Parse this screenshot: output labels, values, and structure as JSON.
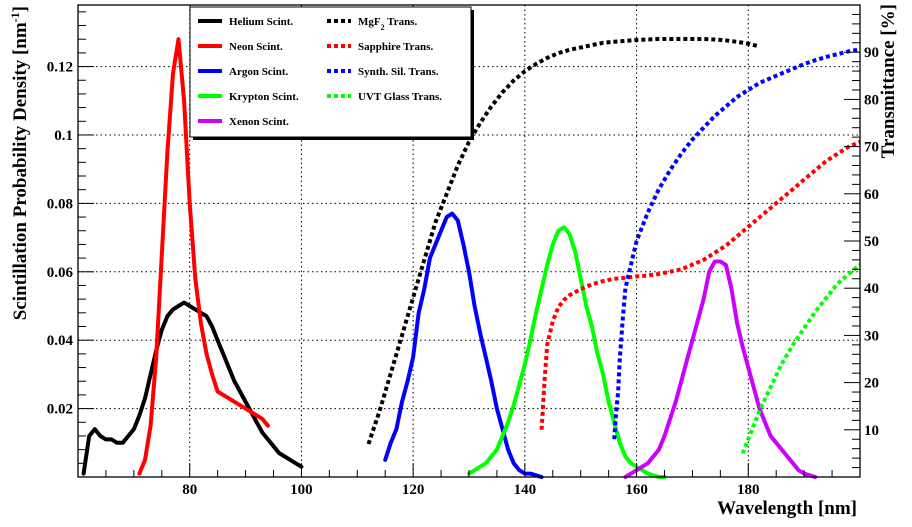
{
  "chart_data": {
    "type": "line",
    "xlabel": "Wavelength [nm]",
    "ylabel": "Scintillation Probability Density [nm",
    "ylabel_sup": "-1",
    "ylabel_end": "]",
    "y2label": "Transmittance [%]",
    "xlim": [
      60,
      200
    ],
    "ylim": [
      0,
      0.138
    ],
    "y2lim": [
      0,
      100
    ],
    "grid": true,
    "legend_placement": "top-left",
    "x_ticks": [
      80,
      100,
      120,
      140,
      160,
      180
    ],
    "y_ticks": [
      0.02,
      0.04,
      0.06,
      0.08,
      0.1,
      0.12
    ],
    "y_tick_labels": [
      "0.02",
      "0.04",
      "0.06",
      "0.08",
      "0.1",
      "0.12"
    ],
    "y2_ticks": [
      10,
      20,
      30,
      40,
      50,
      60,
      70,
      80,
      90
    ],
    "series": [
      {
        "name": "Helium Scint.",
        "axis": "left",
        "color": "#000000",
        "style": "solid",
        "x": [
          61,
          62,
          63,
          64,
          65,
          66,
          67,
          68,
          69,
          70,
          71,
          72,
          73,
          74,
          75,
          76,
          77,
          78,
          79,
          80,
          81,
          82,
          83,
          84,
          85,
          86,
          87,
          88,
          89,
          90,
          91,
          92,
          93,
          94,
          95,
          96,
          97,
          98,
          99,
          100
        ],
        "y": [
          0.001,
          0.012,
          0.014,
          0.012,
          0.011,
          0.011,
          0.01,
          0.01,
          0.012,
          0.014,
          0.018,
          0.023,
          0.03,
          0.037,
          0.043,
          0.047,
          0.049,
          0.05,
          0.051,
          0.05,
          0.049,
          0.048,
          0.047,
          0.044,
          0.04,
          0.036,
          0.032,
          0.028,
          0.025,
          0.022,
          0.019,
          0.016,
          0.013,
          0.011,
          0.009,
          0.007,
          0.006,
          0.005,
          0.004,
          0.003
        ]
      },
      {
        "name": "Neon Scint.",
        "axis": "left",
        "color": "#ff0000",
        "style": "solid",
        "x": [
          71,
          72,
          73,
          74,
          75,
          76,
          77,
          78,
          79,
          80,
          81,
          82,
          83,
          84,
          85,
          86,
          87,
          88,
          89,
          90,
          91,
          92,
          93,
          94
        ],
        "y": [
          0.001,
          0.005,
          0.015,
          0.035,
          0.065,
          0.095,
          0.118,
          0.128,
          0.11,
          0.08,
          0.058,
          0.045,
          0.036,
          0.03,
          0.025,
          0.024,
          0.023,
          0.022,
          0.021,
          0.02,
          0.019,
          0.018,
          0.017,
          0.015
        ]
      },
      {
        "name": "Argon Scint.",
        "axis": "left",
        "color": "#0000ff",
        "style": "solid",
        "x": [
          115,
          116,
          117,
          118,
          119,
          120,
          121,
          122,
          123,
          124,
          125,
          126,
          127,
          128,
          129,
          130,
          131,
          132,
          133,
          134,
          135,
          136,
          137,
          138,
          139,
          140,
          141,
          142,
          143
        ],
        "y": [
          0.005,
          0.01,
          0.014,
          0.022,
          0.028,
          0.035,
          0.048,
          0.055,
          0.064,
          0.068,
          0.072,
          0.076,
          0.077,
          0.075,
          0.068,
          0.06,
          0.05,
          0.042,
          0.035,
          0.028,
          0.02,
          0.014,
          0.008,
          0.004,
          0.002,
          0.001,
          0.001,
          0.0005,
          0.0
        ]
      },
      {
        "name": "Krypton Scint.",
        "axis": "left",
        "color": "#00ff00",
        "style": "solid",
        "x": [
          130,
          131,
          132,
          133,
          134,
          135,
          136,
          137,
          138,
          139,
          140,
          141,
          142,
          143,
          144,
          145,
          146,
          147,
          148,
          149,
          150,
          151,
          152,
          153,
          154,
          155,
          156,
          157,
          158,
          159,
          160,
          161,
          162,
          163,
          164,
          165
        ],
        "y": [
          0.001,
          0.002,
          0.003,
          0.004,
          0.006,
          0.008,
          0.012,
          0.016,
          0.021,
          0.027,
          0.033,
          0.04,
          0.048,
          0.055,
          0.062,
          0.068,
          0.072,
          0.073,
          0.071,
          0.066,
          0.058,
          0.05,
          0.044,
          0.036,
          0.03,
          0.022,
          0.016,
          0.01,
          0.006,
          0.004,
          0.003,
          0.002,
          0.001,
          0.0005,
          0.0,
          0.0
        ]
      },
      {
        "name": "Xenon Scint.",
        "axis": "left",
        "color": "#cc00ff",
        "style": "solid",
        "x": [
          158,
          159,
          160,
          161,
          162,
          163,
          164,
          165,
          166,
          167,
          168,
          169,
          170,
          171,
          172,
          173,
          174,
          175,
          176,
          177,
          178,
          179,
          180,
          181,
          182,
          183,
          184,
          185,
          186,
          187,
          188,
          189,
          190,
          191,
          192
        ],
        "y": [
          0.0,
          0.001,
          0.002,
          0.003,
          0.004,
          0.006,
          0.008,
          0.012,
          0.017,
          0.022,
          0.028,
          0.034,
          0.04,
          0.046,
          0.052,
          0.06,
          0.063,
          0.063,
          0.062,
          0.055,
          0.045,
          0.038,
          0.032,
          0.026,
          0.02,
          0.016,
          0.012,
          0.01,
          0.008,
          0.006,
          0.004,
          0.002,
          0.001,
          0.0005,
          0.0
        ]
      },
      {
        "name": "MgF",
        "name_sub": "2",
        "name_end": " Trans.",
        "axis": "right",
        "color": "#000000",
        "style": "dotted",
        "x": [
          112,
          114,
          116,
          118,
          120,
          122,
          124,
          126,
          128,
          130,
          132,
          134,
          136,
          138,
          140,
          142,
          144,
          146,
          148,
          150,
          152,
          154,
          156,
          158,
          160,
          162,
          164,
          166,
          168,
          170,
          172,
          174,
          176,
          178,
          180,
          182
        ],
        "y": [
          7,
          14,
          22,
          30,
          38,
          46,
          54,
          60,
          66,
          71,
          75,
          78.5,
          81.5,
          84,
          86,
          87.5,
          88.8,
          89.8,
          90.5,
          91,
          91.5,
          92,
          92.2,
          92.4,
          92.6,
          92.7,
          92.8,
          92.8,
          92.8,
          92.8,
          92.8,
          92.7,
          92.5,
          92.2,
          91.8,
          91.2
        ]
      },
      {
        "name": "Sapphire Trans.",
        "axis": "right",
        "color": "#ff0000",
        "style": "dotted",
        "x": [
          143,
          143.5,
          144,
          145,
          146,
          147,
          148,
          150,
          152,
          154,
          156,
          158,
          160,
          162,
          164,
          166,
          168,
          170,
          172,
          174,
          176,
          178,
          180,
          182,
          184,
          186,
          188,
          190,
          192,
          194,
          196,
          198,
          200
        ],
        "y": [
          10,
          20,
          28,
          33,
          36,
          37.5,
          38.5,
          39.8,
          40.8,
          41.5,
          42,
          42.2,
          42.5,
          42.7,
          43,
          43.5,
          44,
          45,
          46,
          47.5,
          49,
          51,
          53,
          55,
          57,
          59,
          61,
          63,
          65,
          67,
          68.5,
          70,
          71
        ]
      },
      {
        "name": "Synth. Sil. Trans.",
        "axis": "right",
        "color": "#0000ff",
        "style": "dotted",
        "x": [
          156,
          156.3,
          156.7,
          157,
          157.5,
          158,
          159,
          160,
          162,
          164,
          166,
          168,
          170,
          172,
          174,
          176,
          178,
          180,
          182,
          184,
          186,
          188,
          190,
          192,
          194,
          196,
          198,
          200
        ],
        "y": [
          8,
          13,
          18,
          25,
          33,
          40,
          45,
          50,
          56,
          61,
          65,
          68.5,
          71.5,
          74,
          76.5,
          78.5,
          80.5,
          82,
          83.5,
          84.5,
          85.5,
          86.5,
          87.5,
          88.3,
          89,
          89.6,
          90.2,
          90.6
        ]
      },
      {
        "name": "UVT Glass Trans.",
        "axis": "right",
        "color": "#00ff00",
        "style": "dotted",
        "x": [
          179,
          180,
          181,
          182,
          184,
          186,
          188,
          190,
          192,
          194,
          196,
          198,
          200
        ],
        "y": [
          5,
          8,
          11,
          14,
          19,
          24,
          28,
          31.5,
          35,
          38,
          41,
          43,
          45
        ]
      }
    ]
  }
}
